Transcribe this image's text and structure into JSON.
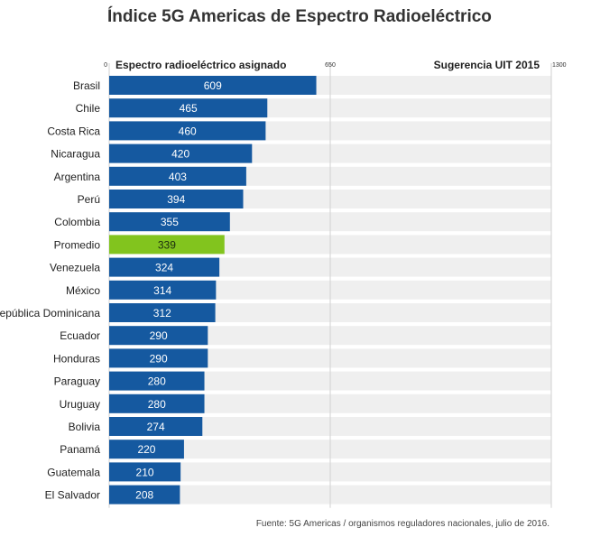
{
  "chart_data": {
    "type": "bar",
    "orientation": "horizontal",
    "title": "Índice 5G Americas de Espectro Radioeléctrico",
    "xlabel_left": "Espectro radioeléctrico asignado",
    "xlabel_right": "Sugerencia UIT 2015",
    "xlim": [
      0,
      1300
    ],
    "tick_labels": [
      "0",
      "650",
      "1300"
    ],
    "tick_values": [
      0,
      650,
      1300
    ],
    "categories": [
      "Brasil",
      "Chile",
      "Costa Rica",
      "Nicaragua",
      "Argentina",
      "Perú",
      "Colombia",
      "Promedio",
      "Venezuela",
      "México",
      "República Dominicana",
      "Ecuador",
      "Honduras",
      "Paraguay",
      "Uruguay",
      "Bolivia",
      "Panamá",
      "Guatemala",
      "El Salvador"
    ],
    "values": [
      609,
      465,
      460,
      420,
      403,
      394,
      355,
      339,
      324,
      314,
      312,
      290,
      290,
      280,
      280,
      274,
      220,
      210,
      208
    ],
    "highlight_category": "Promedio",
    "bar_color": "#1559a0",
    "highlight_color": "#82c41e",
    "track_color": "#efefef",
    "grid": true,
    "source": "Fuente: 5G Americas / organismos reguladores nacionales, julio de 2016."
  }
}
